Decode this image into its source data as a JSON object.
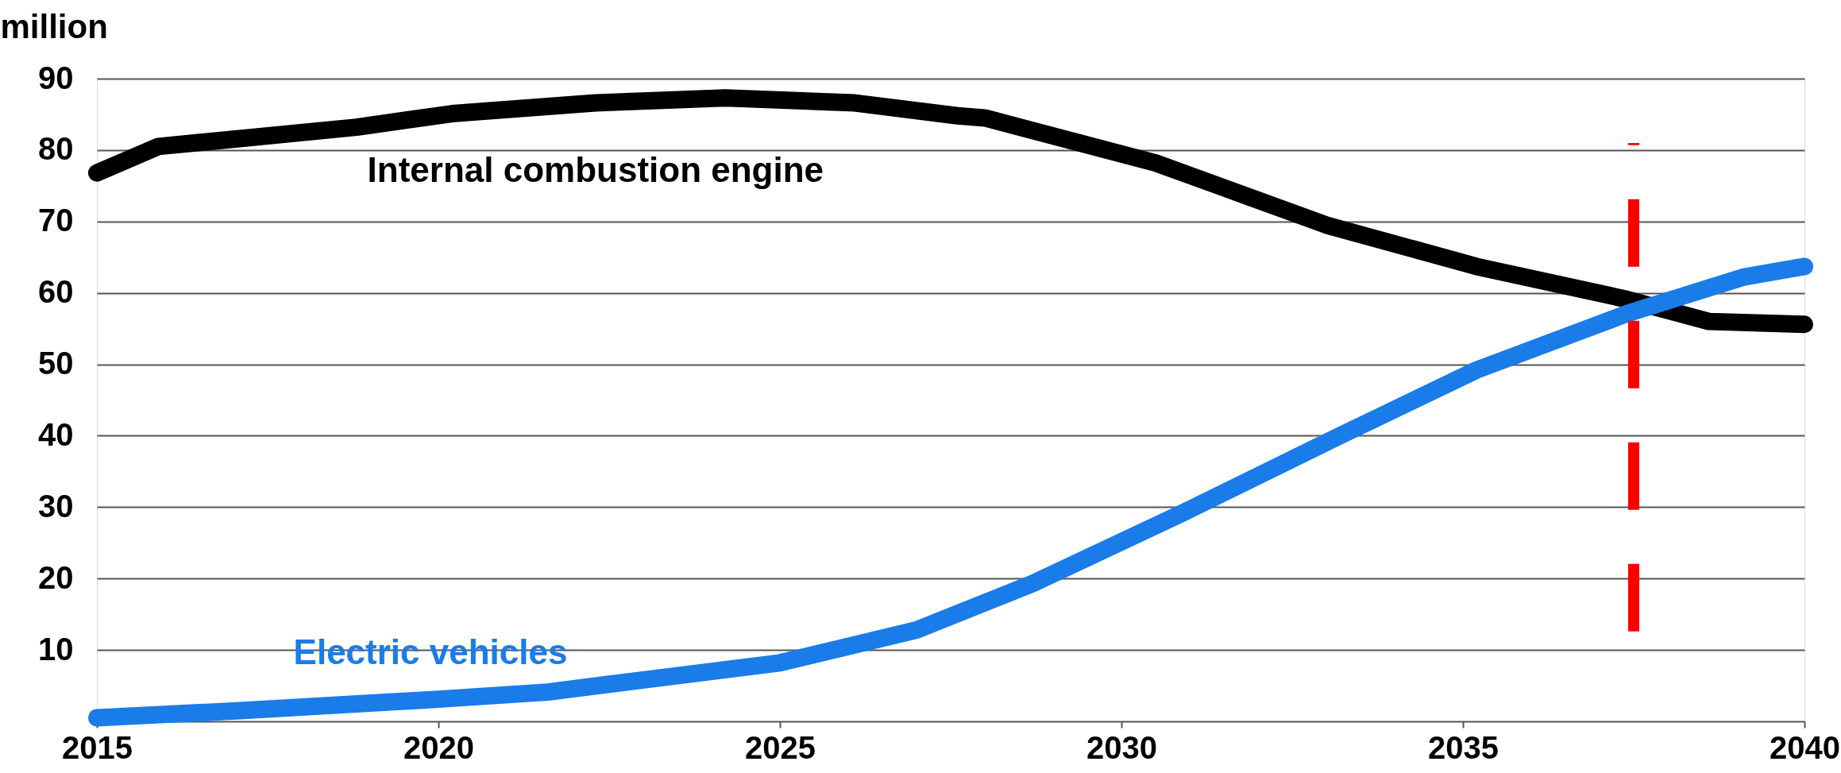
{
  "chart_data": {
    "type": "line",
    "ylabel": "million",
    "xlim": [
      2015,
      2040
    ],
    "xticks": [
      2015,
      2020,
      2025,
      2030,
      2035,
      2040
    ],
    "ylim": [
      0,
      90
    ],
    "yticks": [
      10,
      20,
      30,
      40,
      50,
      60,
      70,
      80,
      90
    ],
    "grid": "y",
    "line_style": "solid",
    "series": [
      {
        "name": "Internal combustion engine",
        "color": "#000000",
        "x": [
          2015,
          2015.9,
          2018.8,
          2020.2,
          2022.3,
          2024.2,
          2026.1,
          2027.6,
          2028.0,
          2030.5,
          2033.0,
          2035.2,
          2037.4,
          2038.6,
          2040
        ],
        "values": [
          76.8,
          80.5,
          83.2,
          85.1,
          86.6,
          87.3,
          86.6,
          84.8,
          84.5,
          78.2,
          69.5,
          63.7,
          59.1,
          56.0,
          55.6
        ]
      },
      {
        "name": "Electric vehicles",
        "color": "#1a7ce8",
        "x": [
          2015,
          2017.1,
          2020.0,
          2021.6,
          2023.0,
          2025.0,
          2027.0,
          2028.7,
          2030.9,
          2033.2,
          2035.2,
          2037.4,
          2039.1,
          2040
        ],
        "values": [
          0.5,
          1.5,
          3.1,
          4.1,
          5.8,
          8.2,
          12.8,
          19.3,
          29.2,
          40.0,
          49.2,
          57.1,
          62.2,
          63.7
        ]
      }
    ],
    "ref_lines": [
      {
        "axis": "x",
        "value": 2037.5,
        "color": "#ff0000",
        "line_style": "dashed"
      }
    ]
  }
}
